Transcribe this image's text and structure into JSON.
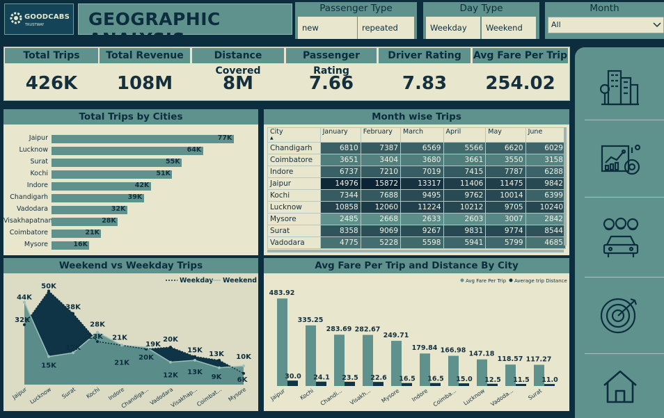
{
  "logo": {
    "name": "GOODCABS",
    "tagline": "TRUSTWAY"
  },
  "title": "GEOGRAPHIC ANALYSIS",
  "slicers": {
    "passenger_type": {
      "label": "Passenger Type",
      "options": [
        "new",
        "repeated"
      ]
    },
    "day_type": {
      "label": "Day Type",
      "options": [
        "Weekday",
        "Weekend"
      ]
    },
    "month": {
      "label": "Month",
      "selected": "All"
    }
  },
  "kpis": [
    {
      "label": "Total Trips",
      "value": "426K"
    },
    {
      "label": "Total Revenue",
      "value": "108M"
    },
    {
      "label": "Distance Covered",
      "value": "8M"
    },
    {
      "label": "Passenger Rating",
      "value": "7.66"
    },
    {
      "label": "Driver Rating",
      "value": "7.83"
    },
    {
      "label": "Avg Fare Per Trip",
      "value": "254.02"
    }
  ],
  "trips_by_city": {
    "title": "Total Trips by Cities",
    "cities": [
      "Jaipur",
      "Lucknow",
      "Surat",
      "Kochi",
      "Indore",
      "Chandigarh",
      "Vadodara",
      "Visakhapatnam",
      "Coimbatore",
      "Mysore"
    ],
    "labels": [
      "77K",
      "64K",
      "55K",
      "51K",
      "42K",
      "39K",
      "32K",
      "28K",
      "21K",
      "16K"
    ]
  },
  "month_wise": {
    "title": "Month wise Trips",
    "columns": [
      "City",
      "January",
      "February",
      "March",
      "April",
      "May",
      "June"
    ],
    "rows": [
      {
        "city": "Chandigarh",
        "values": [
          "6810",
          "7387",
          "6569",
          "5566",
          "6620",
          "6029"
        ]
      },
      {
        "city": "Coimbatore",
        "values": [
          "3651",
          "3404",
          "3680",
          "3661",
          "3550",
          "3158"
        ]
      },
      {
        "city": "Indore",
        "values": [
          "6737",
          "7210",
          "7019",
          "7415",
          "7787",
          "6288"
        ]
      },
      {
        "city": "Jaipur",
        "values": [
          "14976",
          "15872",
          "13317",
          "11406",
          "11475",
          "9842"
        ]
      },
      {
        "city": "Kochi",
        "values": [
          "7344",
          "7688",
          "9495",
          "9762",
          "10014",
          "6399"
        ]
      },
      {
        "city": "Lucknow",
        "values": [
          "10858",
          "12060",
          "11224",
          "10212",
          "9705",
          "10240"
        ]
      },
      {
        "city": "Mysore",
        "values": [
          "2485",
          "2668",
          "2633",
          "2603",
          "3007",
          "2842"
        ]
      },
      {
        "city": "Surat",
        "values": [
          "8358",
          "9069",
          "9267",
          "9831",
          "9774",
          "8544"
        ]
      },
      {
        "city": "Vadodara",
        "values": [
          "4775",
          "5228",
          "5598",
          "5941",
          "5799",
          "4685"
        ]
      }
    ]
  },
  "chart_data": [
    {
      "type": "bar",
      "title": "Total Trips by Cities",
      "categories": [
        "Jaipur",
        "Lucknow",
        "Surat",
        "Kochi",
        "Indore",
        "Chandigarh",
        "Vadodara",
        "Visakhapatnam",
        "Coimbatore",
        "Mysore"
      ],
      "values": [
        77,
        64,
        55,
        51,
        42,
        39,
        32,
        28,
        21,
        16
      ],
      "unit": "K"
    },
    {
      "type": "area",
      "title": "Weekend vs Weekday Trips",
      "categories": [
        "Jaipur",
        "Lucknow",
        "Surat",
        "Kochi",
        "Indore",
        "Chandiga...",
        "Vadodara",
        "Visakhap...",
        "Coimbat...",
        "Mysore"
      ],
      "series": [
        {
          "name": "Weekday",
          "values": [
            32,
            50,
            38,
            23,
            21,
            19,
            20,
            15,
            13,
            6
          ],
          "labels": [
            "32K",
            "50K",
            "38K",
            "23K",
            "21K",
            "19K",
            "20K",
            "15K",
            "13K",
            "6K"
          ]
        },
        {
          "name": "Weekend",
          "values": [
            44,
            15,
            17,
            28,
            21,
            20,
            12,
            13,
            9,
            10
          ],
          "labels": [
            "44K",
            "15K",
            "17K",
            "28K",
            "21K",
            "20K",
            "12K",
            "13K",
            "9K",
            "10K"
          ]
        }
      ],
      "legend": "top-right"
    },
    {
      "type": "bar",
      "title": "Avg Fare Per Trip and Distance By City",
      "categories": [
        "Jaipur",
        "Kochi",
        "Chandi...",
        "Visakh...",
        "Mysore",
        "Indore",
        "Coimba...",
        "Lucknow",
        "Vadoda...",
        "Surat"
      ],
      "series": [
        {
          "name": "Avg Fare Per Trip",
          "values": [
            483.92,
            335.25,
            283.69,
            282.67,
            249.71,
            179.84,
            166.98,
            147.18,
            118.57,
            117.27
          ]
        },
        {
          "name": "Average trip Distance",
          "values": [
            30.0,
            24.1,
            23.5,
            22.6,
            16.5,
            16.5,
            15.0,
            12.5,
            11.5,
            11.0
          ]
        }
      ],
      "legend": "top-right"
    }
  ],
  "colors": {
    "background": "#0b2d3d",
    "panel": "#e8e6cc",
    "accent": "#5f928d",
    "dark": "#0f3446"
  },
  "sidebar": {
    "icons": [
      "city-icon",
      "analytics-icon",
      "passengers-car-icon",
      "target-icon",
      "home-icon"
    ]
  }
}
